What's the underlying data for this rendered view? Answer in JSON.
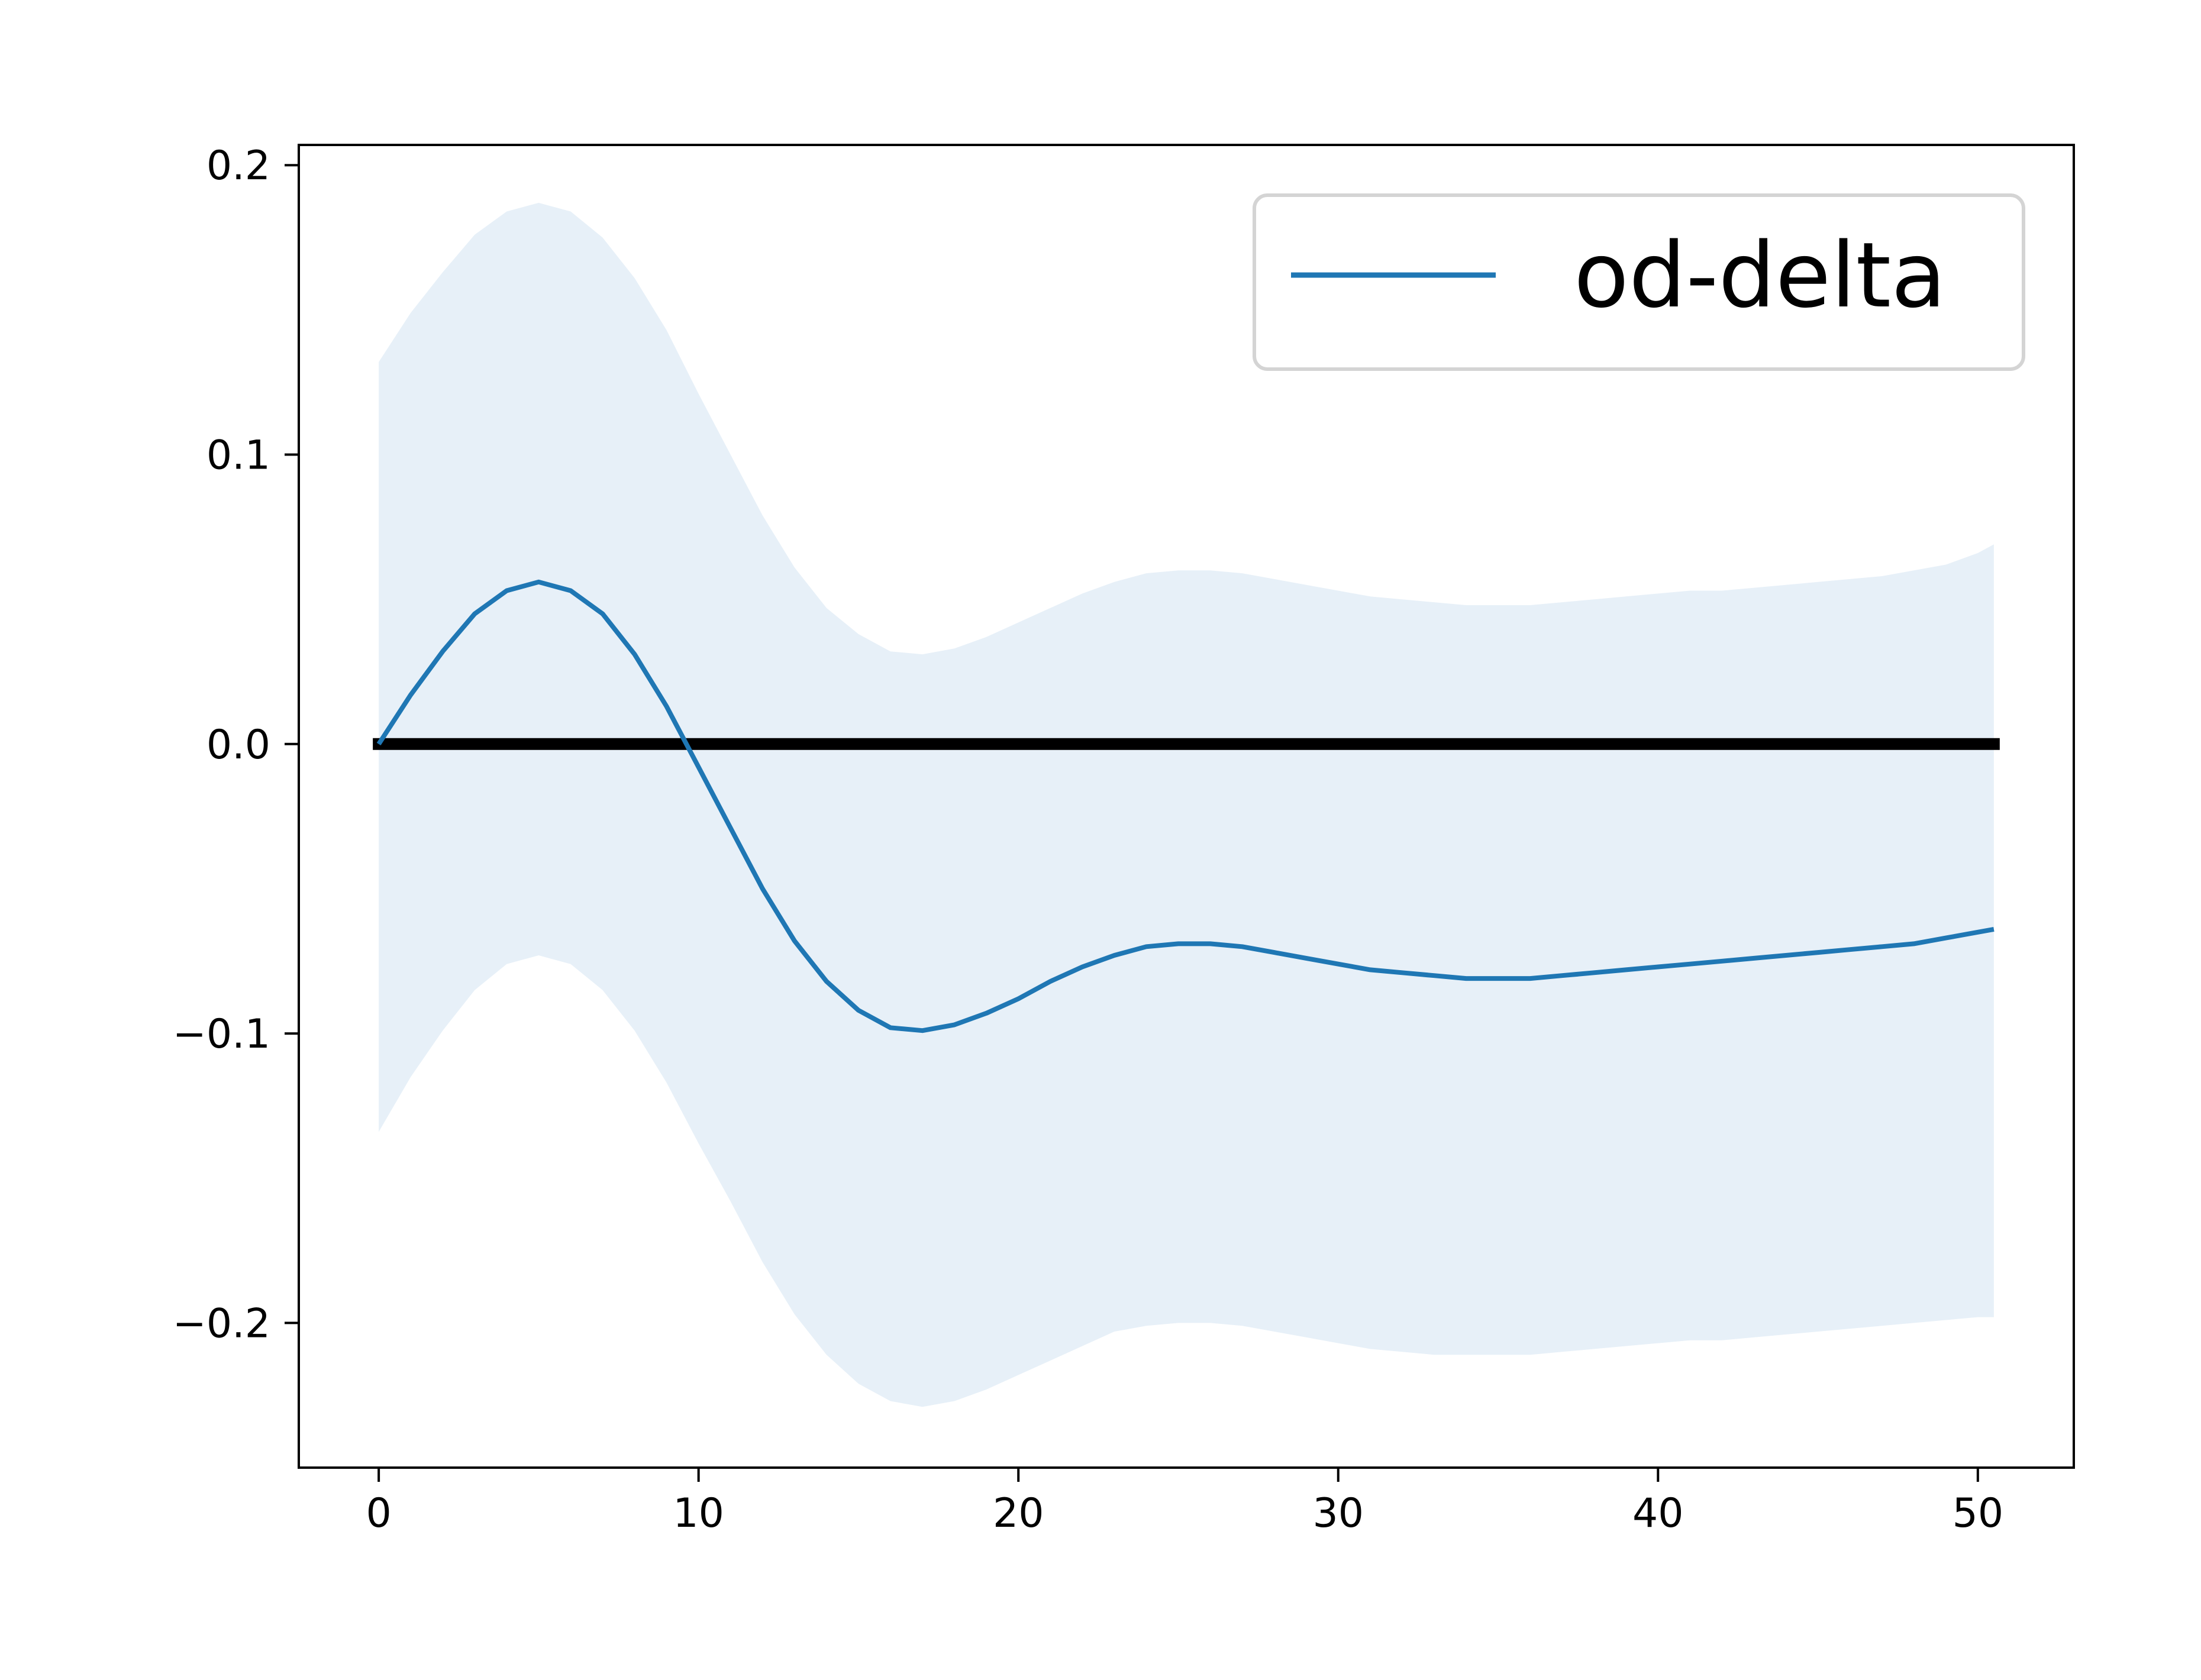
{
  "chart_data": {
    "type": "line",
    "title": "",
    "xlabel": "",
    "ylabel": "",
    "xlim": [
      -2.5,
      53
    ],
    "ylim": [
      -0.25,
      0.207
    ],
    "x_ticks": [
      0,
      10,
      20,
      30,
      40,
      50
    ],
    "x_tick_labels": [
      "0",
      "10",
      "20",
      "30",
      "40",
      "50"
    ],
    "y_ticks": [
      -0.2,
      -0.1,
      0.0,
      0.1,
      0.2
    ],
    "y_tick_labels": [
      "−0.2",
      "−0.1",
      "0.0",
      "0.1",
      "0.2"
    ],
    "grid": false,
    "legend": {
      "placement": "top-right",
      "entries": [
        "od-delta"
      ]
    },
    "reference_line": {
      "y": 0.0,
      "color": "#000000"
    },
    "colors": {
      "series": "#1f77b4",
      "band": "#e7f0f8",
      "reference": "#000000"
    },
    "series": [
      {
        "name": "od-delta",
        "x": [
          0,
          1,
          2,
          3,
          4,
          5,
          6,
          7,
          8,
          9,
          10,
          11,
          12,
          13,
          14,
          15,
          16,
          17,
          18,
          19,
          20,
          21,
          22,
          23,
          24,
          25,
          26,
          27,
          28,
          29,
          30,
          31,
          32,
          33,
          34,
          35,
          36,
          37,
          38,
          39,
          40,
          41,
          42,
          43,
          44,
          45,
          46,
          47,
          48,
          49,
          50,
          50.5
        ],
        "y": [
          0.0,
          0.017,
          0.032,
          0.045,
          0.053,
          0.056,
          0.053,
          0.045,
          0.031,
          0.013,
          -0.008,
          -0.029,
          -0.05,
          -0.068,
          -0.082,
          -0.092,
          -0.098,
          -0.099,
          -0.097,
          -0.093,
          -0.088,
          -0.082,
          -0.077,
          -0.073,
          -0.07,
          -0.069,
          -0.069,
          -0.07,
          -0.072,
          -0.074,
          -0.076,
          -0.078,
          -0.079,
          -0.08,
          -0.081,
          -0.081,
          -0.081,
          -0.08,
          -0.079,
          -0.078,
          -0.077,
          -0.076,
          -0.075,
          -0.074,
          -0.073,
          -0.072,
          -0.071,
          -0.07,
          -0.069,
          -0.067,
          -0.065,
          -0.064
        ],
        "upper": [
          0.132,
          0.149,
          0.163,
          0.176,
          0.184,
          0.187,
          0.184,
          0.175,
          0.161,
          0.143,
          0.121,
          0.1,
          0.079,
          0.061,
          0.047,
          0.038,
          0.032,
          0.031,
          0.033,
          0.037,
          0.042,
          0.047,
          0.052,
          0.056,
          0.059,
          0.06,
          0.06,
          0.059,
          0.057,
          0.055,
          0.053,
          0.051,
          0.05,
          0.049,
          0.048,
          0.048,
          0.048,
          0.049,
          0.05,
          0.051,
          0.052,
          0.053,
          0.053,
          0.054,
          0.055,
          0.056,
          0.057,
          0.058,
          0.06,
          0.062,
          0.066,
          0.069
        ],
        "lower": [
          -0.134,
          -0.115,
          -0.099,
          -0.085,
          -0.076,
          -0.073,
          -0.076,
          -0.085,
          -0.099,
          -0.117,
          -0.138,
          -0.158,
          -0.179,
          -0.197,
          -0.211,
          -0.221,
          -0.227,
          -0.229,
          -0.227,
          -0.223,
          -0.218,
          -0.213,
          -0.208,
          -0.203,
          -0.201,
          -0.2,
          -0.2,
          -0.201,
          -0.203,
          -0.205,
          -0.207,
          -0.209,
          -0.21,
          -0.211,
          -0.211,
          -0.211,
          -0.211,
          -0.21,
          -0.209,
          -0.208,
          -0.207,
          -0.206,
          -0.206,
          -0.205,
          -0.204,
          -0.203,
          -0.202,
          -0.201,
          -0.2,
          -0.199,
          -0.198,
          -0.198
        ]
      }
    ]
  }
}
